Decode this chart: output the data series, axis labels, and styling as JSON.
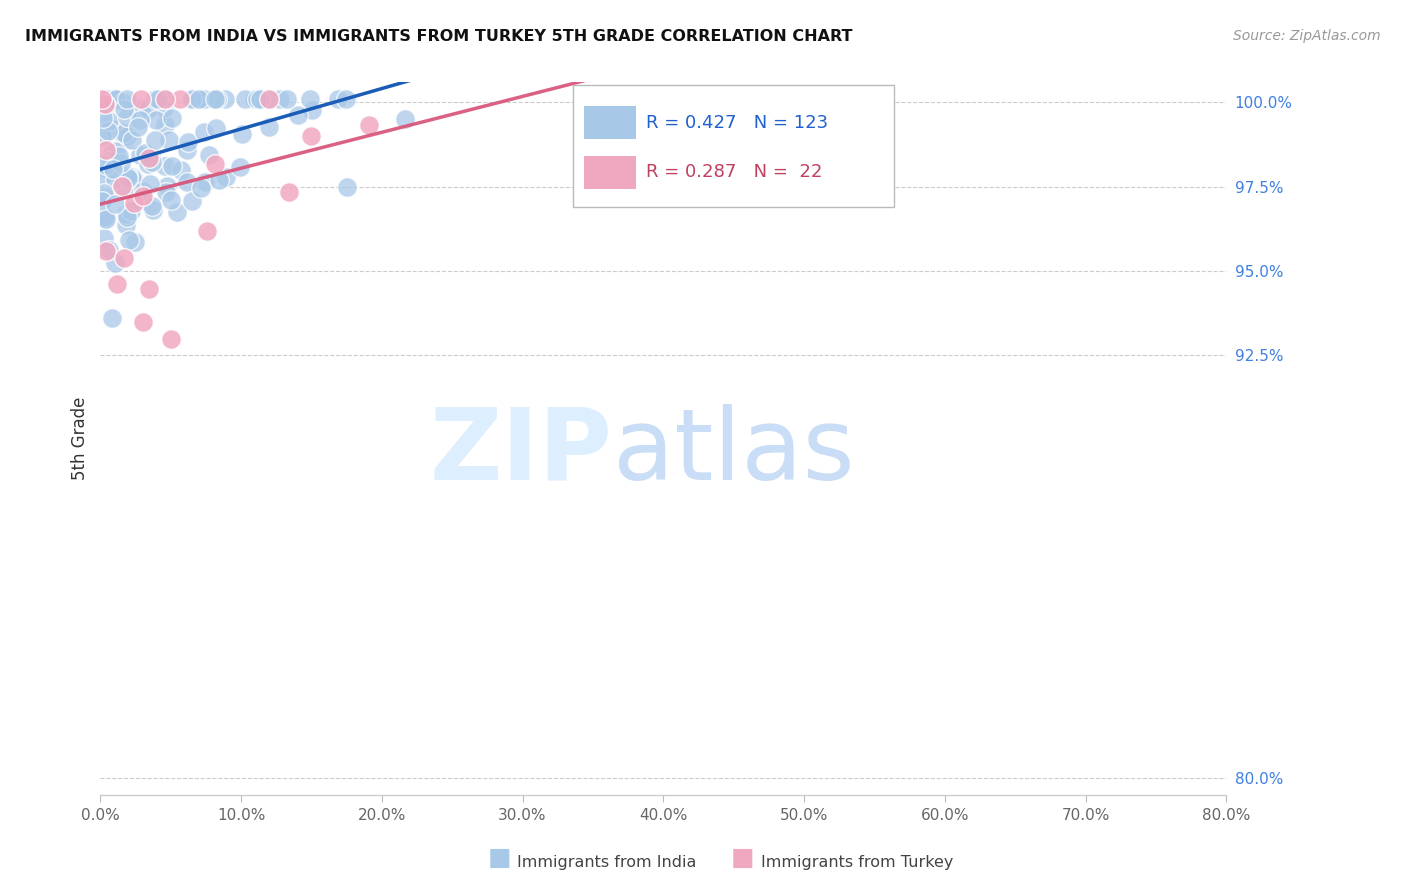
{
  "title": "IMMIGRANTS FROM INDIA VS IMMIGRANTS FROM TURKEY 5TH GRADE CORRELATION CHART",
  "source": "Source: ZipAtlas.com",
  "ylabel": "5th Grade",
  "right_ytick_vals": [
    80.0,
    92.5,
    95.0,
    97.5,
    100.0
  ],
  "right_ytick_labels": [
    "80.0%",
    "92.5%",
    "95.0%",
    "97.5%",
    "100.0%"
  ],
  "R_india": 0.427,
  "N_india": 123,
  "R_turkey": 0.287,
  "N_turkey": 22,
  "india_color": "#a8c8e8",
  "turkey_color": "#f0a8c0",
  "india_line_color": "#1a5cb8",
  "turkey_line_color": "#d85075",
  "xlim_low": 0.0,
  "xlim_high": 0.8,
  "ylim_low": 0.795,
  "ylim_high": 1.006,
  "legend_text_color_india": "#2060d0",
  "legend_text_color_turkey": "#c04060",
  "bottom_legend_india": "Immigrants from India",
  "bottom_legend_turkey": "Immigrants from Turkey"
}
